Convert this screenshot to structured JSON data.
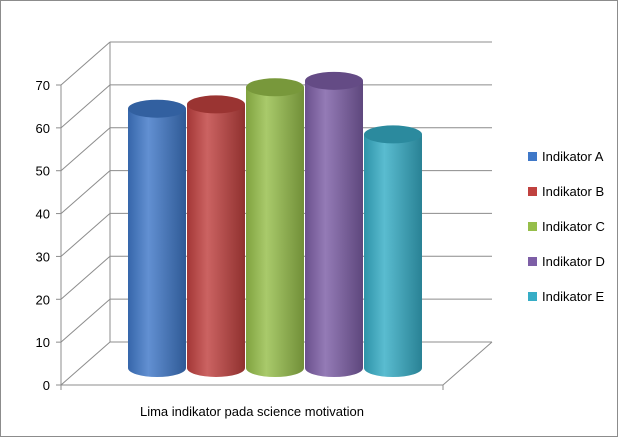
{
  "chart_data": {
    "type": "bar",
    "categories": [
      "Lima indikator pada science motivation"
    ],
    "series": [
      {
        "name": "Indikator A",
        "values": [
          60.5
        ],
        "color": "#3F78C8"
      },
      {
        "name": "Indikator B",
        "values": [
          61.5
        ],
        "color": "#C0413F"
      },
      {
        "name": "Indikator C",
        "values": [
          65.5
        ],
        "color": "#96BE4A"
      },
      {
        "name": "Indikator D",
        "values": [
          67
        ],
        "color": "#7D5EA6"
      },
      {
        "name": "Indikator E",
        "values": [
          54.5
        ],
        "color": "#36ADC6"
      }
    ],
    "ylim": [
      0,
      70
    ],
    "yticks": [
      "0",
      "10",
      "20",
      "30",
      "40",
      "50",
      "60",
      "70"
    ],
    "xlabel": "Lima indikator pada science motivation",
    "ylabel": "",
    "title": "",
    "grid": true,
    "legend_position": "right",
    "style": "3d-cylinder"
  }
}
